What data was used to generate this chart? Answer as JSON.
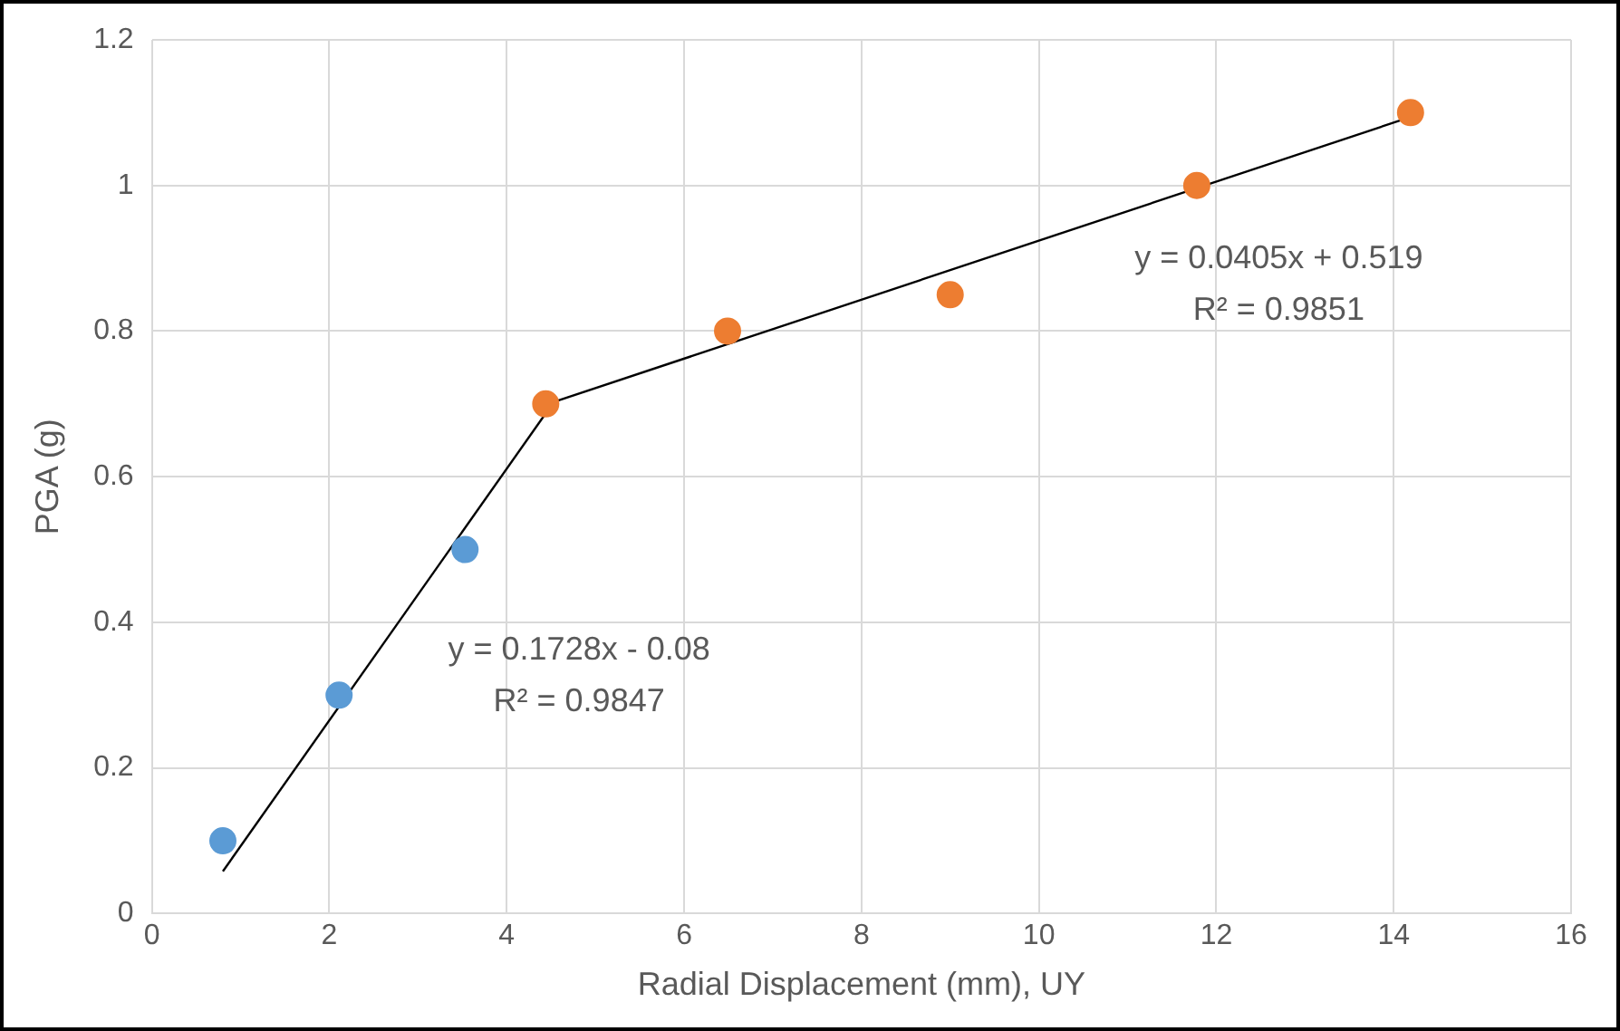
{
  "chart_data": {
    "type": "scatter",
    "xlabel": "Radial Displacement (mm), UY",
    "ylabel": "PGA (g)",
    "xlim": [
      0,
      16
    ],
    "xticks": [
      0,
      2,
      4,
      6,
      8,
      10,
      12,
      14,
      16
    ],
    "ylim": [
      0,
      1.2
    ],
    "yticks": [
      0,
      0.2,
      0.4,
      0.6,
      0.8,
      1,
      1.2
    ],
    "grid": true,
    "legend": false,
    "series": [
      {
        "marker": "circle",
        "color": "#5b9bd5",
        "x": [
          0.8,
          2.11,
          3.53
        ],
        "values": [
          0.1,
          0.3,
          0.5
        ]
      },
      {
        "marker": "circle",
        "color": "#ed7d31",
        "x": [
          4.44,
          6.49,
          9.0,
          11.78,
          14.19
        ],
        "values": [
          0.7,
          0.8,
          0.85,
          1.0,
          1.1
        ]
      },
      {
        "type": "line",
        "marker": "none",
        "color": "#000000",
        "line_style": "solid",
        "x": [
          0.8,
          4.44
        ],
        "values": [
          0.058,
          0.687
        ]
      },
      {
        "type": "line",
        "marker": "none",
        "color": "#000000",
        "line_style": "solid",
        "x": [
          4.44,
          14.19
        ],
        "values": [
          0.699,
          1.094
        ]
      }
    ],
    "annotations": [
      "y = 0.1728x - 0.08",
      "R² = 0.9847",
      "y = 0.0405x + 0.519",
      "R² = 0.9851"
    ]
  }
}
